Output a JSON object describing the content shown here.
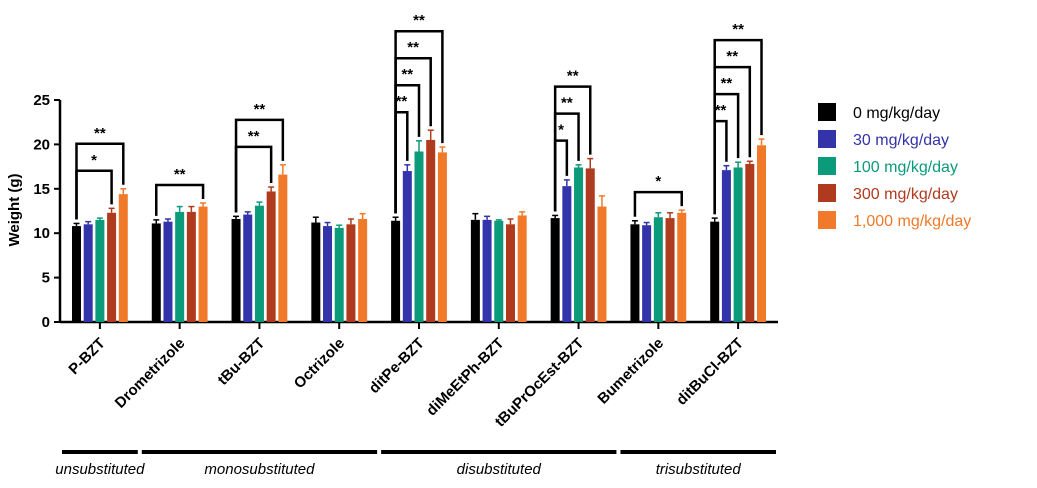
{
  "chart_data": {
    "type": "bar",
    "ylabel": "Weight (g)",
    "ylim": [
      0,
      25
    ],
    "yticks": [
      "0",
      "5",
      "10",
      "15",
      "20",
      "25"
    ],
    "categories": [
      "P-BZT",
      "Drometrizole",
      "tBu-BZT",
      "Octrizole",
      "ditPe-BZT",
      "diMeEtPh-BZT",
      "tBuPrOcEst-BZT",
      "Bumetrizole",
      "ditBuCl-BZT"
    ],
    "series": [
      {
        "name": "0 mg/kg/day",
        "color": "#000000",
        "values": [
          10.8,
          11.1,
          11.6,
          11.2,
          11.4,
          11.5,
          11.7,
          11.0,
          11.3
        ],
        "errors": [
          0.3,
          0.4,
          0.3,
          0.6,
          0.4,
          0.7,
          0.3,
          0.4,
          0.4
        ]
      },
      {
        "name": "30 mg/kg/day",
        "color": "#3333aa",
        "values": [
          11.0,
          11.3,
          12.1,
          10.8,
          17.0,
          11.5,
          15.3,
          10.9,
          17.1
        ],
        "errors": [
          0.3,
          0.3,
          0.3,
          0.4,
          0.7,
          0.4,
          0.7,
          0.3,
          0.5
        ]
      },
      {
        "name": "100 mg/kg/day",
        "color": "#0b9a7a",
        "values": [
          11.5,
          12.4,
          13.1,
          10.6,
          19.2,
          11.4,
          17.4,
          11.8,
          17.4
        ],
        "errors": [
          0.2,
          0.6,
          0.4,
          0.3,
          1.2,
          0.1,
          0.3,
          0.5,
          0.6
        ]
      },
      {
        "name": "300 mg/kg/day",
        "color": "#b03a1e",
        "values": [
          12.3,
          12.4,
          14.7,
          11.0,
          20.5,
          11.0,
          17.3,
          11.7,
          17.8
        ],
        "errors": [
          0.5,
          0.6,
          0.5,
          0.6,
          1.1,
          0.6,
          1.1,
          0.6,
          0.3
        ]
      },
      {
        "name": "1,000 mg/kg/day",
        "color": "#f07a2a",
        "values": [
          14.4,
          13.0,
          16.6,
          11.6,
          19.1,
          12.0,
          13.0,
          12.3,
          19.9
        ],
        "errors": [
          0.6,
          0.4,
          1.1,
          0.6,
          0.6,
          0.4,
          1.2,
          0.3,
          0.7
        ]
      }
    ],
    "significance": [
      {
        "category": "P-BZT",
        "vs_series": 3,
        "mark": "*"
      },
      {
        "category": "P-BZT",
        "vs_series": 4,
        "mark": "**"
      },
      {
        "category": "Drometrizole",
        "vs_series": 4,
        "mark": "**"
      },
      {
        "category": "tBu-BZT",
        "vs_series": 3,
        "mark": "**"
      },
      {
        "category": "tBu-BZT",
        "vs_series": 4,
        "mark": "**"
      },
      {
        "category": "ditPe-BZT",
        "vs_series": 1,
        "mark": "**"
      },
      {
        "category": "ditPe-BZT",
        "vs_series": 2,
        "mark": "**"
      },
      {
        "category": "ditPe-BZT",
        "vs_series": 3,
        "mark": "**"
      },
      {
        "category": "ditPe-BZT",
        "vs_series": 4,
        "mark": "**"
      },
      {
        "category": "tBuPrOcEst-BZT",
        "vs_series": 1,
        "mark": "*"
      },
      {
        "category": "tBuPrOcEst-BZT",
        "vs_series": 2,
        "mark": "**"
      },
      {
        "category": "tBuPrOcEst-BZT",
        "vs_series": 3,
        "mark": "**"
      },
      {
        "category": "Bumetrizole",
        "vs_series": 4,
        "mark": "*"
      },
      {
        "category": "ditBuCl-BZT",
        "vs_series": 1,
        "mark": "**"
      },
      {
        "category": "ditBuCl-BZT",
        "vs_series": 2,
        "mark": "**"
      },
      {
        "category": "ditBuCl-BZT",
        "vs_series": 3,
        "mark": "**"
      },
      {
        "category": "ditBuCl-BZT",
        "vs_series": 4,
        "mark": "**"
      }
    ],
    "groups": [
      {
        "label": "unsubstituted",
        "from": 0,
        "to": 0
      },
      {
        "label": "monosubstituted",
        "from": 1,
        "to": 3
      },
      {
        "label": "disubstituted",
        "from": 4,
        "to": 6
      },
      {
        "label": "trisubstituted",
        "from": 7,
        "to": 8
      }
    ],
    "legend_position": "right",
    "grid": false
  }
}
